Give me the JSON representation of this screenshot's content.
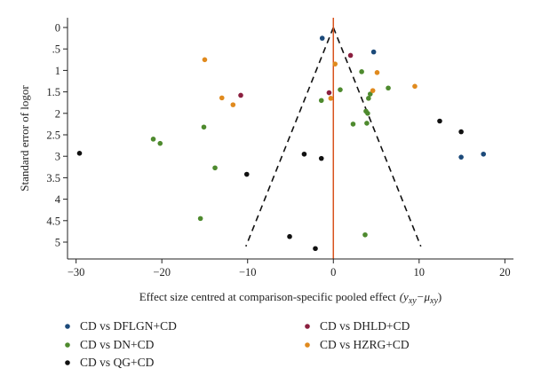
{
  "chart_data": {
    "type": "scatter",
    "title": "",
    "xlabel": "Effect size centred at comparison-specific pooled effect",
    "xlabel_math": "(y",
    "xlabel_math_sub1": "xy",
    "xlabel_math_mid": "−μ",
    "xlabel_math_sub2": "xy",
    "xlabel_math_end": ")",
    "ylabel": "Standard error of logor",
    "xlim": [
      -31,
      21
    ],
    "ylim": [
      0,
      5.25
    ],
    "y_reversed": true,
    "x_ticks": [
      -30,
      -20,
      -10,
      0,
      10,
      20
    ],
    "x_tick_labels": [
      "−30",
      "−20",
      "−10",
      "0",
      "10",
      "20"
    ],
    "y_ticks": [
      0,
      0.5,
      1,
      1.5,
      2,
      2.5,
      3,
      3.5,
      4,
      4.5,
      5
    ],
    "y_tick_labels": [
      "0",
      ".5",
      "1",
      "1.5",
      "2",
      "2.5",
      "3",
      "3.5",
      "4",
      "4.5",
      "5"
    ],
    "funnel": {
      "apex": [
        0,
        0
      ],
      "base_se": 5.1,
      "base_left": -10.2,
      "base_right": 10.2
    },
    "reference_line": {
      "x": 0,
      "color": "#d9541e"
    },
    "legend_position": "bottom",
    "series": [
      {
        "name": "CD vs DFLGN+CD",
        "color": "#1c4a7a",
        "points": [
          [
            -1.3,
            0.25
          ],
          [
            4.7,
            0.57
          ],
          [
            14.9,
            3.02
          ],
          [
            17.5,
            2.95
          ]
        ]
      },
      {
        "name": "CD vs DHLD+CD",
        "color": "#8b1f3f",
        "points": [
          [
            2.0,
            0.65
          ],
          [
            -10.8,
            1.58
          ],
          [
            -0.5,
            1.52
          ]
        ]
      },
      {
        "name": "CD vs DN+CD",
        "color": "#4e8a2e",
        "points": [
          [
            3.3,
            1.03
          ],
          [
            6.4,
            1.41
          ],
          [
            0.8,
            1.45
          ],
          [
            4.3,
            1.55
          ],
          [
            4.1,
            1.65
          ],
          [
            -1.4,
            1.7
          ],
          [
            3.8,
            1.95
          ],
          [
            4.0,
            2.0
          ],
          [
            2.3,
            2.25
          ],
          [
            3.9,
            2.23
          ],
          [
            -15.1,
            2.32
          ],
          [
            -21.0,
            2.6
          ],
          [
            -20.2,
            2.7
          ],
          [
            -13.8,
            3.27
          ],
          [
            -15.5,
            4.45
          ],
          [
            3.7,
            4.83
          ]
        ]
      },
      {
        "name": "CD vs HZRG+CD",
        "color": "#e08a1e",
        "points": [
          [
            -15.0,
            0.75
          ],
          [
            0.2,
            0.85
          ],
          [
            5.1,
            1.05
          ],
          [
            9.5,
            1.37
          ],
          [
            4.6,
            1.47
          ],
          [
            -13.0,
            1.64
          ],
          [
            -11.7,
            1.8
          ],
          [
            -0.3,
            1.65
          ]
        ]
      },
      {
        "name": "CD vs QG+CD",
        "color": "#111111",
        "points": [
          [
            12.4,
            2.18
          ],
          [
            14.9,
            2.43
          ],
          [
            -29.6,
            2.93
          ],
          [
            -3.4,
            2.95
          ],
          [
            -1.4,
            3.05
          ],
          [
            -10.1,
            3.42
          ],
          [
            -5.1,
            4.87
          ],
          [
            -2.1,
            5.15
          ]
        ]
      }
    ]
  }
}
